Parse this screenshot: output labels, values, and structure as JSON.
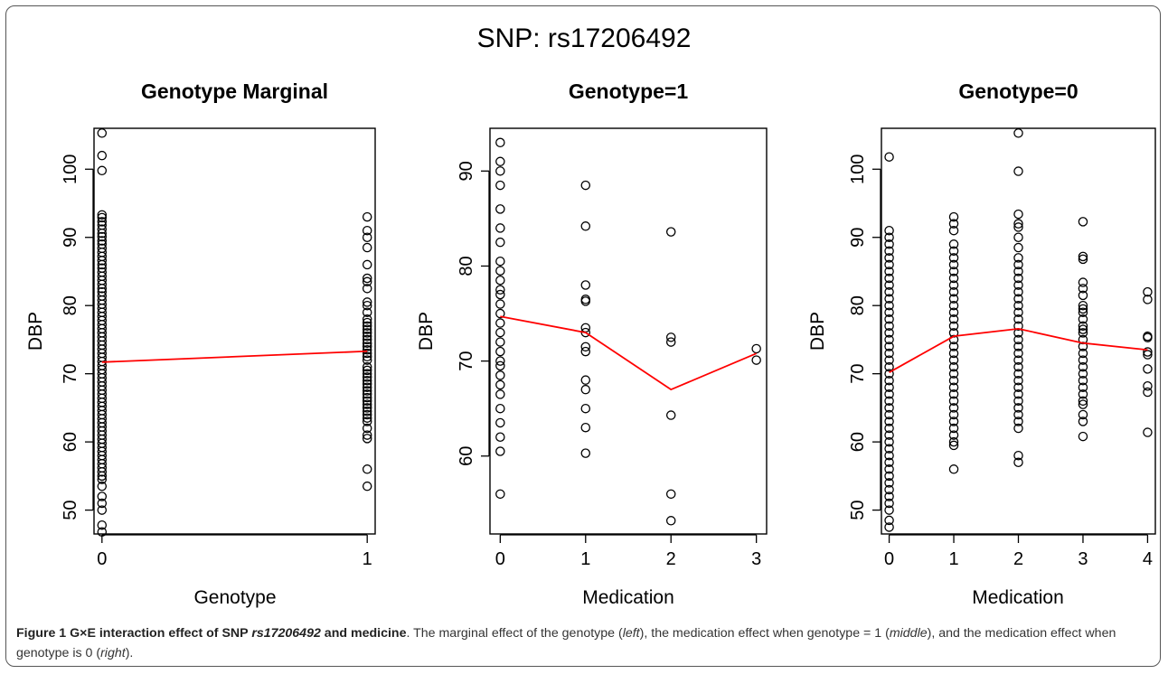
{
  "figure": {
    "suptitle": "SNP: rs17206492",
    "caption": {
      "label": "Figure 1",
      "title_pre": "G×E interaction effect of SNP ",
      "title_snp": "rs17206492",
      "title_post": " and medicine",
      "text_1": ". The marginal effect of the genotype (",
      "it_1": "left",
      "text_2": "), the medication effect when genotype = 1 (",
      "it_2": "middle",
      "text_3": "), and the medication effect when genotype is 0 (",
      "it_3": "right",
      "text_4": ")."
    }
  },
  "colors": {
    "points": "#000000",
    "mean_line": "#ff0000",
    "axes": "#000000"
  },
  "chart_data": [
    {
      "type": "scatter",
      "title": "Genotype Marginal",
      "xlabel": "Genotype",
      "ylabel": "DBP",
      "xticks": [
        0,
        1
      ],
      "yticks": [
        50,
        60,
        70,
        80,
        90,
        100
      ],
      "xlim": [
        -0.03,
        1.03
      ],
      "ylim": [
        46.5,
        106
      ],
      "points": [
        {
          "x": 0,
          "y": [
            105.3,
            102,
            99.8,
            93.3,
            92.9,
            92.3,
            91.8,
            91.2,
            90.6,
            90.1,
            89.5,
            89.0,
            88.4,
            87.8,
            87.2,
            86.6,
            86.0,
            85.5,
            84.9,
            84.3,
            83.7,
            83.1,
            82.5,
            82.0,
            81.4,
            80.8,
            80.2,
            79.6,
            79.0,
            78.4,
            77.8,
            77.2,
            76.6,
            76.0,
            75.4,
            74.8,
            74.2,
            73.6,
            73.0,
            72.4,
            71.8,
            71.2,
            70.6,
            70.0,
            69.4,
            68.8,
            68.2,
            67.6,
            67.0,
            66.4,
            65.8,
            65.2,
            64.6,
            64.0,
            63.4,
            62.8,
            62.2,
            61.6,
            61.0,
            60.4,
            59.8,
            59.2,
            58.6,
            58.0,
            57.4,
            56.8,
            56.2,
            55.6,
            55.0,
            54.5,
            53.5,
            52.0,
            51.0,
            50.0,
            47.8,
            46.8
          ]
        },
        {
          "x": 1,
          "y": [
            93,
            91,
            90,
            88.5,
            86,
            84,
            83.5,
            82.5,
            80.5,
            80,
            79,
            78,
            77.5,
            77,
            76.5,
            76,
            75.5,
            75,
            74.5,
            74,
            73.5,
            73,
            72.5,
            72,
            71,
            70.5,
            70,
            69.5,
            69,
            68.5,
            68,
            67.5,
            67,
            66.5,
            66,
            65.5,
            65,
            64.5,
            64,
            63.5,
            63,
            62,
            61,
            60.5,
            56,
            53.5
          ]
        }
      ],
      "line": {
        "x": [
          0,
          1
        ],
        "y": [
          71.7,
          73.3
        ]
      }
    },
    {
      "type": "scatter",
      "title": "Genotype=1",
      "xlabel": "Medication",
      "ylabel": "DBP",
      "xticks": [
        0,
        1,
        2,
        3
      ],
      "yticks": [
        60,
        70,
        80,
        90
      ],
      "xlim": [
        -0.12,
        3.12
      ],
      "ylim": [
        51.8,
        94.5
      ],
      "points": [
        {
          "x": 0,
          "y": [
            93,
            91,
            90,
            88.5,
            86,
            84,
            82.5,
            80.5,
            79.5,
            78.5,
            77.5,
            77,
            76,
            75,
            74,
            73,
            72,
            71,
            70,
            69.5,
            68.5,
            67.5,
            66.5,
            65,
            63.5,
            62,
            60.5,
            56
          ]
        },
        {
          "x": 1,
          "y": [
            88.5,
            84.2,
            78,
            76.5,
            76.3,
            73.5,
            73,
            71.5,
            71,
            68,
            67,
            65,
            63,
            60.3
          ]
        },
        {
          "x": 2,
          "y": [
            83.6,
            72.5,
            72,
            64.3,
            56,
            53.2
          ]
        },
        {
          "x": 3,
          "y": [
            71.3,
            70.1
          ]
        }
      ],
      "line": {
        "x": [
          0,
          1,
          2,
          3
        ],
        "y": [
          74.7,
          73,
          67,
          70.8
        ]
      }
    },
    {
      "type": "scatter",
      "title": "Genotype=0",
      "xlabel": "Medication",
      "ylabel": "DBP",
      "xticks": [
        0,
        1,
        2,
        3,
        4
      ],
      "yticks": [
        50,
        60,
        70,
        80,
        90,
        100
      ],
      "xlim": [
        -0.12,
        4.12
      ],
      "ylim": [
        46.5,
        106
      ],
      "points": [
        {
          "x": 0,
          "y": [
            101.8,
            91,
            90,
            89,
            88,
            87,
            86,
            85,
            84,
            83,
            82,
            81,
            80,
            79,
            78,
            77,
            76,
            75,
            74,
            73,
            72,
            71,
            70,
            69,
            68,
            67,
            66,
            65,
            64,
            63,
            62,
            61,
            60,
            59,
            58,
            57,
            56,
            55,
            54,
            53,
            52,
            51,
            50,
            48.5,
            47.5
          ]
        },
        {
          "x": 1,
          "y": [
            93,
            92,
            91,
            89,
            88,
            87,
            86,
            85,
            84,
            83,
            82,
            81,
            80,
            79,
            78,
            77,
            76,
            75,
            74,
            73,
            72,
            71,
            70,
            69,
            68,
            67,
            66,
            65,
            64,
            63,
            62,
            61,
            60,
            59.5,
            56
          ]
        },
        {
          "x": 2,
          "y": [
            105.3,
            99.7,
            93.4,
            92,
            91.5,
            90,
            88.5,
            87,
            86,
            85,
            84,
            83,
            82,
            81,
            80,
            79,
            78,
            77,
            76,
            75,
            74,
            73,
            72,
            71,
            70,
            69,
            68,
            67,
            66,
            65,
            64,
            63,
            62,
            58,
            57
          ]
        },
        {
          "x": 3,
          "y": [
            92.3,
            87.2,
            86.8,
            83.4,
            82.5,
            81.5,
            80,
            79.5,
            79,
            78,
            77,
            76.5,
            76,
            75,
            74,
            73,
            72,
            71,
            70,
            69,
            68,
            67,
            66,
            65.5,
            64,
            63,
            60.8
          ]
        },
        {
          "x": 4,
          "y": [
            82,
            80.9,
            75.5,
            75.3,
            73.2,
            72.8,
            70.7,
            68.2,
            67.3,
            61.4
          ]
        }
      ],
      "line": {
        "x": [
          0,
          1,
          2,
          3,
          4
        ],
        "y": [
          70.2,
          75.5,
          76.6,
          74.5,
          73.5
        ]
      }
    }
  ]
}
